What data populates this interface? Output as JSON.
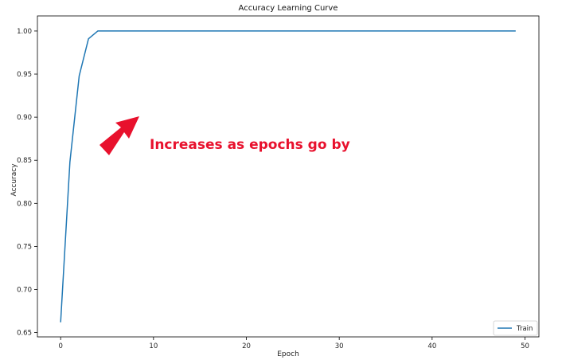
{
  "chart_data": {
    "type": "line",
    "title": "Accuracy Learning Curve",
    "xlabel": "Epoch",
    "ylabel": "Accuracy",
    "xlim": [
      -2.5,
      51.5
    ],
    "ylim": [
      0.645,
      1.0175
    ],
    "xticks": [
      0,
      10,
      20,
      30,
      40,
      50
    ],
    "yticks": [
      0.65,
      0.7,
      0.75,
      0.8,
      0.85,
      0.9,
      0.95,
      1.0
    ],
    "ytick_labels": [
      "0.65",
      "0.70",
      "0.75",
      "0.80",
      "0.85",
      "0.90",
      "0.95",
      "1.00"
    ],
    "grid": false,
    "legend_position": "lower-right",
    "series": [
      {
        "name": "Train",
        "color": "#1f77b4",
        "x": [
          0,
          1,
          2,
          3,
          4,
          5,
          6,
          7,
          8,
          9,
          10,
          11,
          12,
          13,
          14,
          15,
          16,
          17,
          18,
          19,
          20,
          21,
          22,
          23,
          24,
          25,
          26,
          27,
          28,
          29,
          30,
          31,
          32,
          33,
          34,
          35,
          36,
          37,
          38,
          39,
          40,
          41,
          42,
          43,
          44,
          45,
          46,
          47,
          48,
          49
        ],
        "y": [
          0.662,
          0.848,
          0.948,
          0.991,
          1.0,
          1.0,
          1.0,
          1.0,
          1.0,
          1.0,
          1.0,
          1.0,
          1.0,
          1.0,
          1.0,
          1.0,
          1.0,
          1.0,
          1.0,
          1.0,
          1.0,
          1.0,
          1.0,
          1.0,
          1.0,
          1.0,
          1.0,
          1.0,
          1.0,
          1.0,
          1.0,
          1.0,
          1.0,
          1.0,
          1.0,
          1.0,
          1.0,
          1.0,
          1.0,
          1.0,
          1.0,
          1.0,
          1.0,
          1.0,
          1.0,
          1.0,
          1.0,
          1.0,
          1.0,
          1.0
        ]
      }
    ],
    "annotation": {
      "text": "Increases as epochs go by",
      "color": "#e8112d"
    }
  }
}
